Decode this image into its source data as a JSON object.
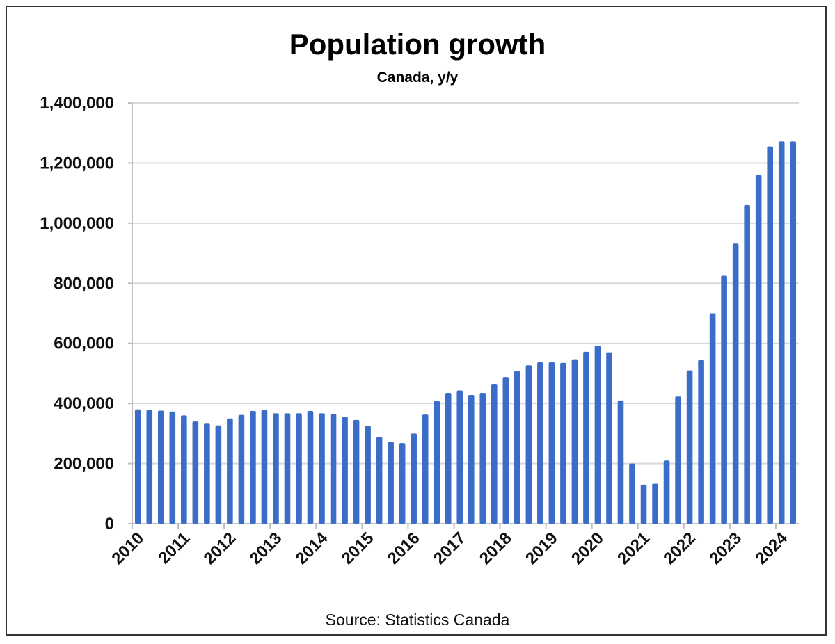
{
  "chart_data": {
    "type": "bar",
    "title": "Population growth",
    "subtitle": "Canada, y/y",
    "source": "Source: Statistics Canada",
    "xlabel": "",
    "ylabel": "",
    "ylim": [
      0,
      1400000
    ],
    "yticks": [
      0,
      200000,
      400000,
      600000,
      800000,
      1000000,
      1200000,
      1400000
    ],
    "ytick_labels": [
      "0",
      "200,000",
      "400,000",
      "600,000",
      "800,000",
      "1,000,000",
      "1,200,000",
      "1,400,000"
    ],
    "xtick_labels": [
      "2010",
      "2011",
      "2012",
      "2013",
      "2014",
      "2015",
      "2016",
      "2017",
      "2018",
      "2019",
      "2020",
      "2021",
      "2022",
      "2023",
      "2024"
    ],
    "frequency": "quarterly",
    "grid": true,
    "bar_color": "#3a6cc8",
    "values": [
      380000,
      378000,
      376000,
      373000,
      360000,
      340000,
      335000,
      327000,
      350000,
      362000,
      375000,
      378000,
      367000,
      367000,
      367000,
      375000,
      367000,
      365000,
      355000,
      345000,
      325000,
      288000,
      272000,
      268000,
      300000,
      363000,
      408000,
      435000,
      443000,
      428000,
      435000,
      465000,
      488000,
      508000,
      527000,
      537000,
      537000,
      535000,
      547000,
      572000,
      592000,
      570000,
      410000,
      200000,
      130000,
      133000,
      210000,
      423000,
      510000,
      545000,
      700000,
      825000,
      932000,
      1060000,
      1160000,
      1255000,
      1272000,
      1272000
    ]
  }
}
